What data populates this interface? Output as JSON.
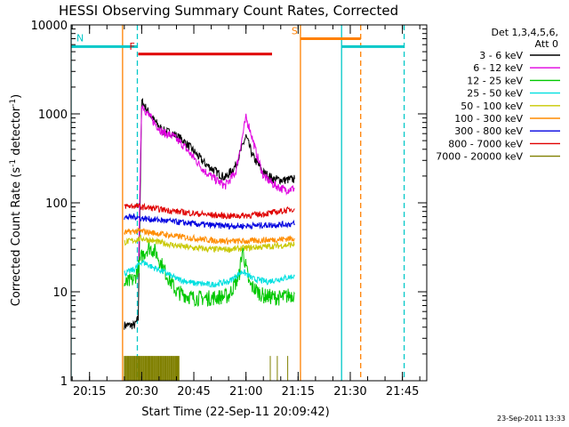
{
  "chart_data": {
    "type": "line",
    "title": "HESSI Observing Summary Count Rates, Corrected",
    "xlabel": "Start Time (22-Sep-11 20:09:42)",
    "ylabel_main": "Corrected Count Rate (s",
    "ylabel_sup1": "-1",
    "ylabel_mid": " detector",
    "ylabel_sup2": "-1",
    "ylabel_end": ")",
    "y_scale": "log",
    "ylim": [
      1,
      10000
    ],
    "xlim": [
      "20:09:42",
      "21:52:00"
    ],
    "x_ticks": [
      "20:15",
      "20:30",
      "20:45",
      "21:00",
      "21:15",
      "21:30",
      "21:45"
    ],
    "y_ticks": [
      "1",
      "10",
      "100",
      "1000",
      "10000"
    ],
    "legend_title_1": "Det 1,3,4,5,6,",
    "legend_title_2": "Att 0",
    "legend_position": "right",
    "series": [
      {
        "name": "3 - 6 keV",
        "color": "#000000",
        "points": [
          [
            "20:25",
            4.2
          ],
          [
            "20:28",
            4.2
          ],
          [
            "20:29",
            5
          ],
          [
            "20:30",
            1400
          ],
          [
            "20:31",
            1200
          ],
          [
            "20:33",
            900
          ],
          [
            "20:36",
            650
          ],
          [
            "20:39",
            600
          ],
          [
            "20:42",
            500
          ],
          [
            "20:45",
            380
          ],
          [
            "20:48",
            280
          ],
          [
            "20:51",
            230
          ],
          [
            "20:54",
            190
          ],
          [
            "20:57",
            260
          ],
          [
            "21:00",
            560
          ],
          [
            "21:02",
            330
          ],
          [
            "21:05",
            220
          ],
          [
            "21:08",
            185
          ],
          [
            "21:11",
            180
          ],
          [
            "21:14",
            185
          ]
        ]
      },
      {
        "name": "6 - 12 keV",
        "color": "#e000e0",
        "points": [
          [
            "20:29",
            15
          ],
          [
            "20:30",
            1300
          ],
          [
            "20:31",
            1100
          ],
          [
            "20:33",
            850
          ],
          [
            "20:36",
            620
          ],
          [
            "20:39",
            560
          ],
          [
            "20:42",
            440
          ],
          [
            "20:45",
            320
          ],
          [
            "20:48",
            230
          ],
          [
            "20:51",
            185
          ],
          [
            "20:54",
            155
          ],
          [
            "20:57",
            220
          ],
          [
            "21:00",
            900
          ],
          [
            "21:01",
            700
          ],
          [
            "21:03",
            360
          ],
          [
            "21:05",
            200
          ],
          [
            "21:08",
            160
          ],
          [
            "21:11",
            140
          ],
          [
            "21:14",
            145
          ]
        ]
      },
      {
        "name": "12 - 25 keV",
        "color": "#00c800",
        "points": [
          [
            "20:25",
            12
          ],
          [
            "20:28",
            14
          ],
          [
            "20:30",
            25
          ],
          [
            "20:32",
            32
          ],
          [
            "20:34",
            28
          ],
          [
            "20:37",
            16
          ],
          [
            "20:40",
            10
          ],
          [
            "20:45",
            8.5
          ],
          [
            "20:50",
            8.5
          ],
          [
            "20:55",
            9
          ],
          [
            "20:58",
            15
          ],
          [
            "20:59",
            30
          ],
          [
            "21:01",
            12
          ],
          [
            "21:05",
            9
          ],
          [
            "21:10",
            8.5
          ],
          [
            "21:14",
            9.5
          ]
        ]
      },
      {
        "name": "25 - 50 keV",
        "color": "#00e0e0",
        "points": [
          [
            "20:25",
            16
          ],
          [
            "20:28",
            18
          ],
          [
            "20:30",
            22
          ],
          [
            "20:33",
            19
          ],
          [
            "20:36",
            17
          ],
          [
            "20:40",
            14
          ],
          [
            "20:45",
            12.5
          ],
          [
            "20:50",
            12
          ],
          [
            "20:55",
            13
          ],
          [
            "20:59",
            17
          ],
          [
            "21:02",
            14
          ],
          [
            "21:06",
            13
          ],
          [
            "21:10",
            14
          ],
          [
            "21:14",
            15
          ]
        ]
      },
      {
        "name": "50 - 100 keV",
        "color": "#c8c800",
        "points": [
          [
            "20:25",
            36
          ],
          [
            "20:28",
            38
          ],
          [
            "20:30",
            40
          ],
          [
            "20:35",
            36
          ],
          [
            "20:40",
            33
          ],
          [
            "20:45",
            31
          ],
          [
            "20:50",
            30
          ],
          [
            "20:55",
            30
          ],
          [
            "21:00",
            31
          ],
          [
            "21:05",
            32
          ],
          [
            "21:10",
            33
          ],
          [
            "21:14",
            34
          ]
        ]
      },
      {
        "name": "100 - 300 keV",
        "color": "#ff8c00",
        "points": [
          [
            "20:25",
            46
          ],
          [
            "20:28",
            48
          ],
          [
            "20:30",
            48
          ],
          [
            "20:35",
            45
          ],
          [
            "20:40",
            42
          ],
          [
            "20:45",
            40
          ],
          [
            "20:50",
            38
          ],
          [
            "20:55",
            37
          ],
          [
            "21:00",
            37
          ],
          [
            "21:05",
            38
          ],
          [
            "21:10",
            39
          ],
          [
            "21:14",
            40
          ]
        ]
      },
      {
        "name": "300 - 800 keV",
        "color": "#0000e0",
        "points": [
          [
            "20:25",
            68
          ],
          [
            "20:28",
            70
          ],
          [
            "20:30",
            67
          ],
          [
            "20:35",
            64
          ],
          [
            "20:40",
            61
          ],
          [
            "20:45",
            58
          ],
          [
            "20:50",
            56
          ],
          [
            "20:55",
            55
          ],
          [
            "21:00",
            55
          ],
          [
            "21:05",
            56
          ],
          [
            "21:10",
            57
          ],
          [
            "21:14",
            58
          ]
        ]
      },
      {
        "name": "800 - 7000 keV",
        "color": "#e00000",
        "points": [
          [
            "20:25",
            92
          ],
          [
            "20:28",
            92
          ],
          [
            "20:30",
            90
          ],
          [
            "20:35",
            85
          ],
          [
            "20:40",
            80
          ],
          [
            "20:45",
            76
          ],
          [
            "20:50",
            73
          ],
          [
            "20:55",
            71
          ],
          [
            "21:00",
            72
          ],
          [
            "21:05",
            75
          ],
          [
            "21:10",
            80
          ],
          [
            "21:14",
            86
          ]
        ]
      },
      {
        "name": "7000 - 20000 keV",
        "color": "#808000",
        "points": [
          [
            "20:25",
            1.9
          ],
          [
            "20:27",
            1
          ],
          [
            "20:28",
            1.9
          ],
          [
            "20:30",
            1
          ],
          [
            "20:32",
            1.9
          ],
          [
            "20:34",
            1
          ],
          [
            "20:36",
            1.9
          ],
          [
            "20:38",
            1
          ],
          [
            "20:40",
            1.9
          ],
          [
            "21:07",
            1.9
          ],
          [
            "21:08",
            1
          ],
          [
            "21:09",
            1.9
          ],
          [
            "21:12",
            1.9
          ],
          [
            "21:13",
            1
          ]
        ]
      }
    ],
    "flags": [
      {
        "label": "N",
        "color": "#00c8c8",
        "x_start": "20:09:42",
        "x_end": "20:28:45",
        "y": 5700
      },
      {
        "label": "F",
        "color": "#e00000",
        "x_start": "20:29:00",
        "x_end": "21:07:30",
        "y": 4700
      },
      {
        "label": "S",
        "color": "#ff8000",
        "x_start": "21:15:40",
        "x_end": "21:33:00",
        "y": 7000
      },
      {
        "label": "",
        "color": "#00c8c8",
        "x_start": "21:27:30",
        "x_end": "21:45:30",
        "y": 5700
      }
    ],
    "markers": [
      {
        "x": "20:09:42",
        "color": "#00c8c8",
        "style": "solid"
      },
      {
        "x": "20:28:45",
        "color": "#00c8c8",
        "style": "dashed"
      },
      {
        "x": "20:24:30",
        "color": "#ff8000",
        "style": "solid"
      },
      {
        "x": "21:15:40",
        "color": "#ff8000",
        "style": "solid"
      },
      {
        "x": "21:27:30",
        "color": "#00c8c8",
        "style": "solid"
      },
      {
        "x": "21:33:00",
        "color": "#ff8000",
        "style": "dashed"
      },
      {
        "x": "21:45:30",
        "color": "#00c8c8",
        "style": "dashed"
      }
    ]
  },
  "footer": {
    "stamp": "23-Sep-2011 13:33"
  }
}
